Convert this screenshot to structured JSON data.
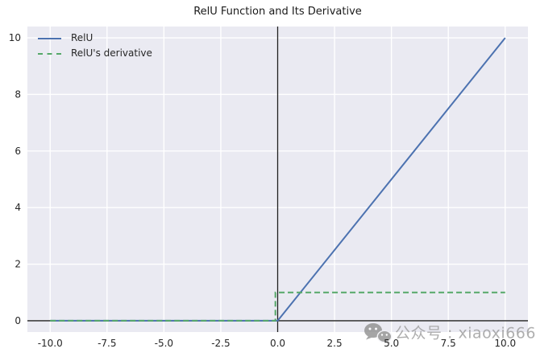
{
  "figure": {
    "background": "#ffffff"
  },
  "watermark": {
    "text": "公众号 : xiaoxi666",
    "icon": "wechat-icon",
    "color": "#9b9b9b"
  },
  "chart_data": {
    "type": "line",
    "title": "RelU Function and Its Derivative",
    "xlabel": "",
    "ylabel": "",
    "xlim": [
      -11,
      11
    ],
    "ylim": [
      -0.4,
      10.4
    ],
    "grid": true,
    "plot_background": "#eaeaf2",
    "grid_color": "#ffffff",
    "axis_line_color": "#1f1f1f",
    "tick_label_color": "#262626",
    "legend_position": "upper left",
    "x_ticks": {
      "values": [
        -10,
        -7.5,
        -5,
        -2.5,
        0,
        2.5,
        5,
        7.5,
        10
      ],
      "labels": [
        "-10.0",
        "-7.5",
        "-5.0",
        "-2.5",
        "0.0",
        "2.5",
        "5.0",
        "7.5",
        "10.0"
      ]
    },
    "y_ticks": {
      "values": [
        0,
        2,
        4,
        6,
        8,
        10
      ],
      "labels": [
        "0",
        "2",
        "4",
        "6",
        "8",
        "10"
      ]
    },
    "reference_lines": {
      "vertical_x": 0,
      "horizontal_y": 0
    },
    "series": [
      {
        "name": "RelU",
        "color": "#4c72b0",
        "style": "solid",
        "points": [
          [
            -10,
            0
          ],
          [
            0,
            0
          ],
          [
            10,
            10
          ]
        ]
      },
      {
        "name": "RelU's derivative",
        "color": "#55a868",
        "style": "dashed",
        "points": [
          [
            -10,
            0
          ],
          [
            -0.1,
            0
          ],
          [
            -0.1,
            1
          ],
          [
            10,
            1
          ]
        ]
      }
    ]
  }
}
